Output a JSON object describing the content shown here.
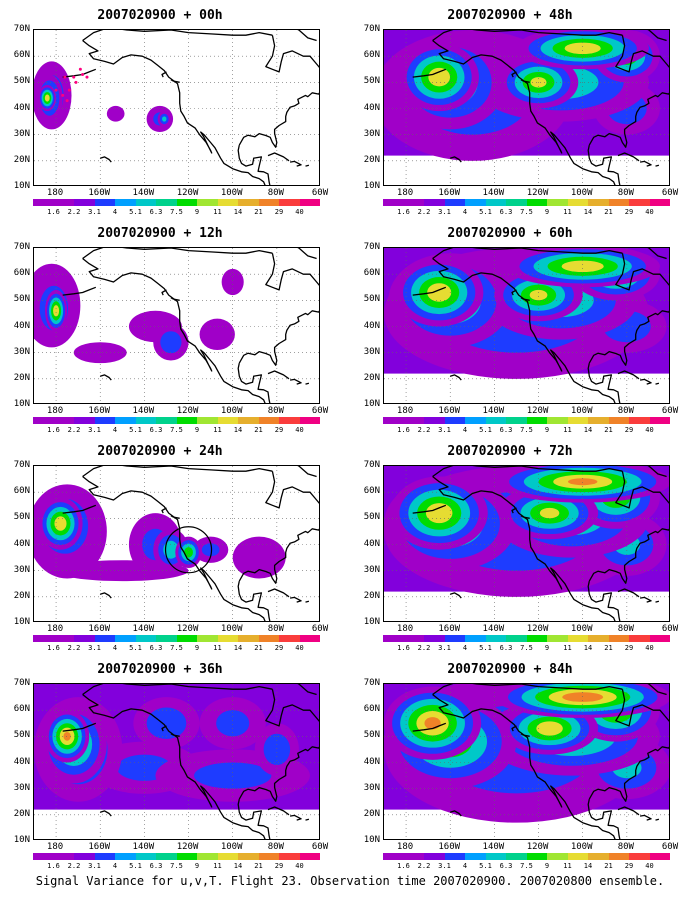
{
  "panels": [
    {
      "id": "p00",
      "title": "2007020900 + 00h"
    },
    {
      "id": "p12",
      "title": "2007020900 + 12h"
    },
    {
      "id": "p24",
      "title": "2007020900 + 24h"
    },
    {
      "id": "p36",
      "title": "2007020900 + 36h"
    },
    {
      "id": "p48",
      "title": "2007020900 + 48h"
    },
    {
      "id": "p60",
      "title": "2007020900 + 60h"
    },
    {
      "id": "p72",
      "title": "2007020900 + 72h"
    },
    {
      "id": "p84",
      "title": "2007020900 + 84h"
    }
  ],
  "lat_labels": [
    "70N",
    "60N",
    "50N",
    "40N",
    "30N",
    "20N",
    "10N"
  ],
  "lon_labels": [
    "180",
    "160W",
    "140W",
    "120W",
    "100W",
    "80W",
    "60W"
  ],
  "colorbar": {
    "levels": [
      "1.6",
      "2.2",
      "3.1",
      "4",
      "5.1",
      "6.3",
      "7.5",
      "9",
      "11",
      "14",
      "21",
      "29",
      "40"
    ],
    "colors": [
      "#a000c8",
      "#8200dc",
      "#1e3cff",
      "#00a0ff",
      "#00c8c8",
      "#00d28c",
      "#00dc00",
      "#a0e632",
      "#e6dc32",
      "#e6af2d",
      "#f08228",
      "#fa3c3c",
      "#f00082"
    ]
  },
  "caption": "Signal Variance for u,v,T. Flight 23. Observation time 2007020900. 2007020800 ensemble."
}
